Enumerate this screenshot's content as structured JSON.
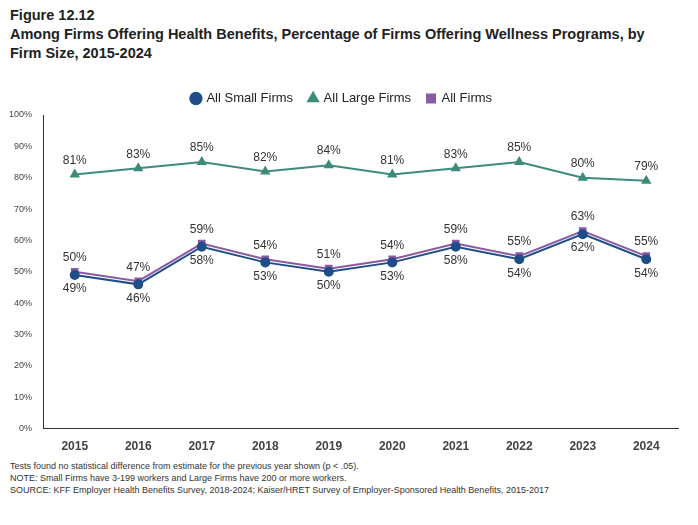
{
  "chart_data": {
    "type": "line",
    "title": "Figure 12.12",
    "subtitle": "Among Firms Offering Health Benefits, Percentage of Firms Offering Wellness Programs, by Firm Size, 2015-2024",
    "categories": [
      "2015",
      "2016",
      "2017",
      "2018",
      "2019",
      "2020",
      "2021",
      "2022",
      "2023",
      "2024"
    ],
    "series": [
      {
        "name": "All Small Firms",
        "color": "#1f4e87",
        "marker": "circle",
        "values": [
          49,
          46,
          58,
          53,
          50,
          53,
          58,
          54,
          62,
          54
        ],
        "value_labels": [
          "49%",
          "46%",
          "58%",
          "53%",
          "50%",
          "53%",
          "58%",
          "54%",
          "62%",
          "54%"
        ]
      },
      {
        "name": "All Large Firms",
        "color": "#3d8b7a",
        "marker": "triangle",
        "values": [
          81,
          83,
          85,
          82,
          84,
          81,
          83,
          85,
          80,
          79
        ],
        "value_labels": [
          "81%",
          "83%",
          "85%",
          "82%",
          "84%",
          "81%",
          "83%",
          "85%",
          "80%",
          "79%"
        ]
      },
      {
        "name": "All Firms",
        "color": "#8b5aa5",
        "marker": "square",
        "values": [
          50,
          47,
          59,
          54,
          51,
          54,
          59,
          55,
          63,
          55
        ],
        "value_labels": [
          "50%",
          "47%",
          "59%",
          "54%",
          "51%",
          "54%",
          "59%",
          "55%",
          "63%",
          "55%"
        ]
      }
    ],
    "ylim": [
      0,
      100
    ],
    "yticks": [
      {
        "value": 0,
        "label": "0%"
      },
      {
        "value": 10,
        "label": "10%"
      },
      {
        "value": 20,
        "label": "20%"
      },
      {
        "value": 30,
        "label": "30%"
      },
      {
        "value": 40,
        "label": "40%"
      },
      {
        "value": 50,
        "label": "50%"
      },
      {
        "value": 60,
        "label": "60%"
      },
      {
        "value": 70,
        "label": "70%"
      },
      {
        "value": 80,
        "label": "80%"
      },
      {
        "value": 90,
        "label": "90%"
      },
      {
        "value": 100,
        "label": "100%"
      }
    ],
    "grid": false,
    "legend": "top",
    "data_labels": true,
    "notes": [
      "Tests found no statistical difference from estimate for the previous year shown (p < .05).",
      "NOTE: Small Firms have 3-199 workers and Large Firms have 200 or more workers.",
      "SOURCE: KFF Employer Health Benefits Survey, 2018-2024; Kaiser/HRET Survey of Employer-Sponsored Health Benefits, 2015-2017"
    ]
  }
}
